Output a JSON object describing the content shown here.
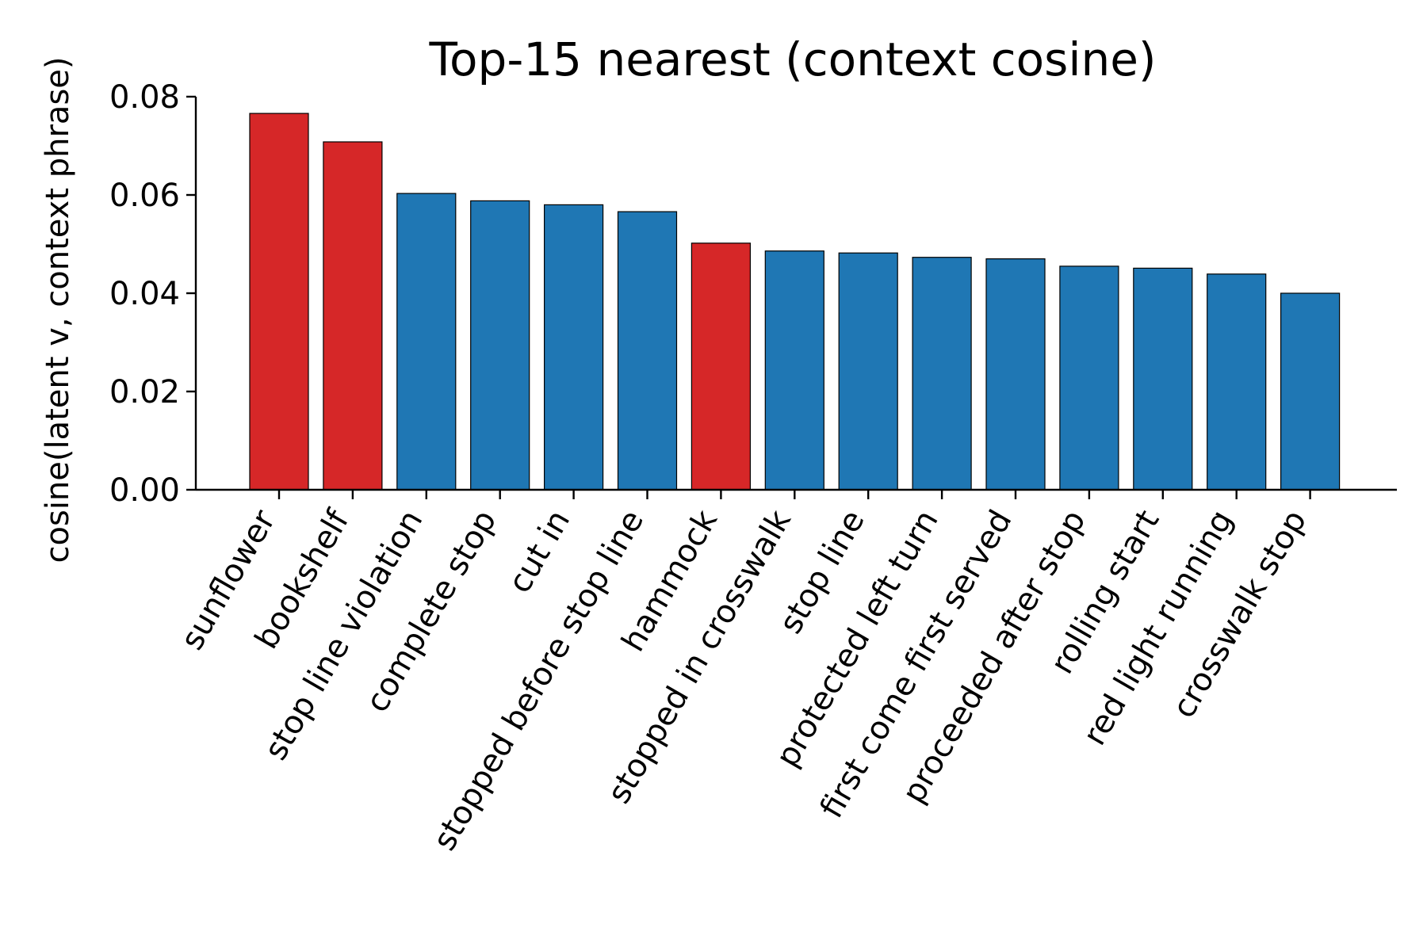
{
  "chart_data": {
    "type": "bar",
    "title": "Top-15 nearest (context cosine)",
    "xlabel": "",
    "ylabel": "cosine(latent v, context phrase)",
    "ylim": [
      0,
      0.08
    ],
    "yticks": [
      "0.00",
      "0.02",
      "0.04",
      "0.06",
      "0.08"
    ],
    "grid": false,
    "legend": "none",
    "colors": {
      "blue": "#1f77b4",
      "red": "#d62728",
      "edge": "#000000"
    },
    "categories": [
      "sunflower",
      "bookshelf",
      "stop line violation",
      "complete stop",
      "cut in",
      "stopped before stop line",
      "hammock",
      "stopped in crosswalk",
      "stop line",
      "protected left turn",
      "first come first served",
      "proceeded after stop",
      "rolling start",
      "red light running",
      "crosswalk stop"
    ],
    "values": [
      0.0766,
      0.0708,
      0.0603,
      0.0588,
      0.058,
      0.0566,
      0.0502,
      0.0486,
      0.0482,
      0.0473,
      0.047,
      0.0455,
      0.0451,
      0.0439,
      0.04
    ],
    "bar_colors": [
      "red",
      "red",
      "blue",
      "blue",
      "blue",
      "blue",
      "red",
      "blue",
      "blue",
      "blue",
      "blue",
      "blue",
      "blue",
      "blue",
      "blue"
    ]
  }
}
